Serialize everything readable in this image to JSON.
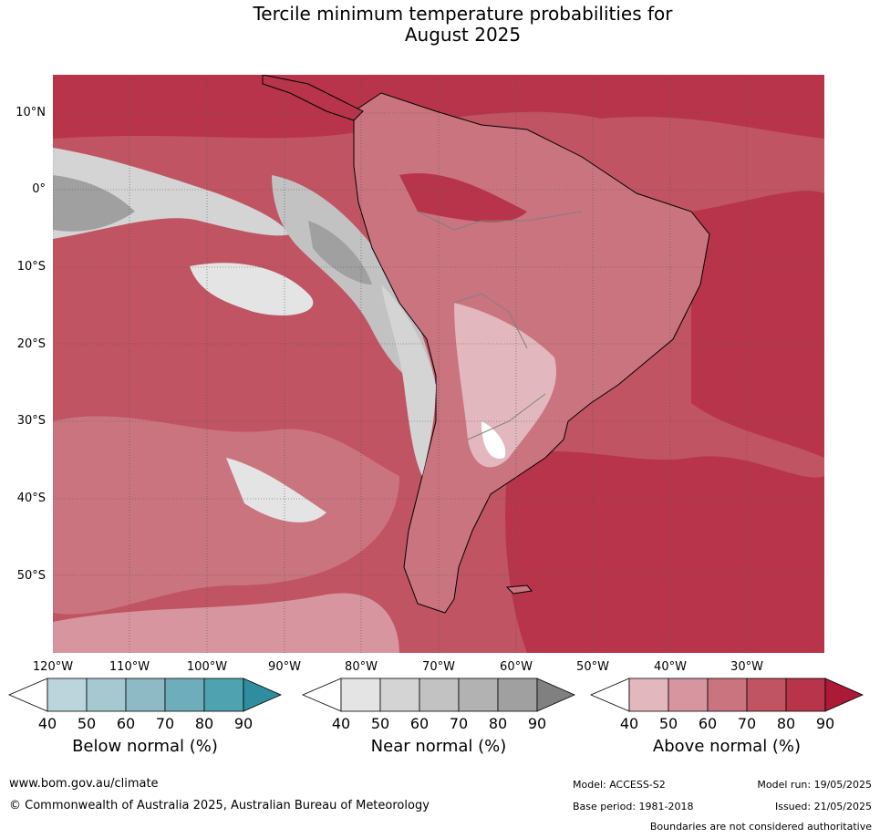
{
  "title_line1": "Tercile minimum temperature probabilities for",
  "title_line2": "August 2025",
  "lat_labels": [
    "10°N",
    "0°",
    "10°S",
    "20°S",
    "30°S",
    "40°S",
    "50°S"
  ],
  "lon_labels": [
    "120°W",
    "110°W",
    "100°W",
    "90°W",
    "80°W",
    "70°W",
    "60°W",
    "50°W",
    "40°W",
    "30°W"
  ],
  "colorbars": [
    {
      "title": "Below normal (%)",
      "ticks": [
        "40",
        "50",
        "60",
        "70",
        "80",
        "90"
      ],
      "colors": [
        "#ffffff",
        "#bcd5dc",
        "#a6c9d1",
        "#8dbac5",
        "#6eaebb",
        "#4fa3b1",
        "#2e8d9f"
      ]
    },
    {
      "title": "Near normal (%)",
      "ticks": [
        "40",
        "50",
        "60",
        "70",
        "80",
        "90"
      ],
      "colors": [
        "#ffffff",
        "#e4e4e4",
        "#d4d4d4",
        "#c2c2c2",
        "#b2b2b2",
        "#a0a0a0",
        "#808080"
      ]
    },
    {
      "title": "Above normal (%)",
      "ticks": [
        "40",
        "50",
        "60",
        "70",
        "80",
        "90"
      ],
      "colors": [
        "#ffffff",
        "#e3b7be",
        "#d7959f",
        "#ca7480",
        "#c05462",
        "#b8344a",
        "#ab1a37"
      ]
    }
  ],
  "footer": {
    "url": "www.bom.gov.au/climate",
    "copyright": "© Commonwealth of Australia 2025, Australian Bureau of Meteorology",
    "model": "Model: ACCESS-S2",
    "model_run": "Model run: 19/05/2025",
    "base_period": "Base period: 1981-2018",
    "issued": "Issued: 21/05/2025",
    "disclaimer": "Boundaries are not considered authoritative"
  }
}
